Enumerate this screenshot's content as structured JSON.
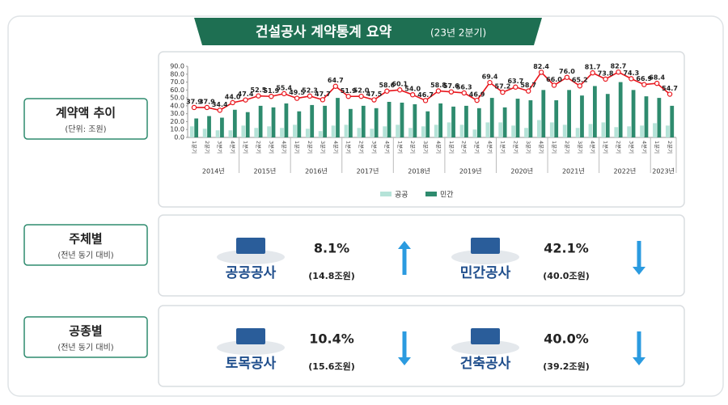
{
  "header": {
    "title": "건설공사 계약통계 요약",
    "subtitle": "(23년 2분기)"
  },
  "sections": [
    {
      "label": "계약액 추이",
      "sublabel": "(단위: 조원)"
    },
    {
      "label": "주체별",
      "sublabel": "(전년 동기 대비)",
      "items": [
        {
          "name": "공공공사",
          "rate": "8.1%",
          "amount": "(14.8조원)",
          "direction": "up"
        },
        {
          "name": "민간공사",
          "rate": "42.1%",
          "amount": "(40.0조원)",
          "direction": "down"
        }
      ]
    },
    {
      "label": "공종별",
      "sublabel": "(전년 동기 대비)",
      "items": [
        {
          "name": "토목공사",
          "rate": "10.4%",
          "amount": "(15.6조원)",
          "direction": "down"
        },
        {
          "name": "건축공사",
          "rate": "40.0%",
          "amount": "(39.2조원)",
          "direction": "down"
        }
      ]
    }
  ],
  "chart_data": {
    "type": "bar-line",
    "categories": [
      "1분기",
      "2분기",
      "3분기",
      "4분기",
      "1분기",
      "2분기",
      "3분기",
      "4분기",
      "1분기",
      "2분기",
      "3분기",
      "4분기",
      "1분기",
      "2분기",
      "3분기",
      "4분기",
      "1분기",
      "2분기",
      "3분기",
      "4분기",
      "1분기",
      "2분기",
      "3분기",
      "4분기",
      "1분기",
      "2분기",
      "3분기",
      "4분기",
      "1분기",
      "2분기",
      "3분기",
      "4분기",
      "1분기",
      "2분기",
      "3분기",
      "4분기",
      "1분기",
      "2분기"
    ],
    "year_labels": [
      "2014년",
      "2015년",
      "2016년",
      "2017년",
      "2018년",
      "2019년",
      "2020년",
      "2021년",
      "2022년",
      "2023년"
    ],
    "series": [
      {
        "name": "공공",
        "color": "#b5e3d8",
        "values": [
          14,
          11,
          9,
          9,
          15,
          12,
          14,
          12,
          16,
          11,
          8,
          15,
          16,
          12,
          11,
          14,
          16,
          12,
          14,
          16,
          19,
          16,
          10,
          19,
          19,
          15,
          12,
          22,
          19,
          16,
          12,
          17,
          19,
          13,
          14,
          15,
          18,
          15
        ]
      },
      {
        "name": "민간",
        "color": "#2e8b6e",
        "values": [
          24,
          27,
          25,
          35,
          32,
          40,
          38,
          43,
          33,
          41,
          40,
          50,
          36,
          40,
          37,
          45,
          44,
          42,
          33,
          43,
          39,
          40,
          37,
          50,
          38,
          49,
          47,
          60,
          47,
          60,
          53,
          65,
          55,
          70,
          60,
          52,
          50,
          40
        ]
      }
    ],
    "line": {
      "color": "#e8141b",
      "values": [
        37.9,
        37.9,
        34.4,
        44.0,
        47.4,
        52.5,
        51.9,
        55.4,
        49.5,
        52.3,
        47.7,
        64.7,
        51.9,
        52.0,
        47.5,
        58.6,
        60.1,
        54.0,
        46.7,
        58.8,
        57.6,
        56.3,
        46.9,
        69.4,
        57.2,
        63.7,
        58.7,
        82.4,
        66.0,
        76.0,
        65.2,
        81.7,
        73.8,
        82.7,
        74.3,
        66.9,
        68.4,
        54.7
      ],
      "value_labels": [
        "37.9",
        "37.9",
        "34.4",
        "44.0",
        "47.4",
        "52.5",
        "51.9",
        "55.4",
        "49.5",
        "52.3",
        "47.7",
        "64.7",
        "51.9",
        "52.0",
        "47.5",
        "58.6",
        "60.1",
        "54.0",
        "46.7",
        "58.8",
        "57.6",
        "56.3",
        "46.9",
        "69.4",
        "57.2",
        "63.7",
        "58.7",
        "82.4",
        "66.0",
        "76.0",
        "65.2",
        "81.7",
        "73.8",
        "82.7",
        "74.3",
        "66.9",
        "68.4",
        "54.7"
      ]
    },
    "ylim": [
      0,
      90
    ],
    "yticks": [
      {
        "value": 0,
        "label": "0.0"
      },
      {
        "value": 10,
        "label": "10.0"
      },
      {
        "value": 20,
        "label": "20.0"
      },
      {
        "value": 30,
        "label": "30.0"
      },
      {
        "value": 40,
        "label": "40.0"
      },
      {
        "value": 50,
        "label": "50.0"
      },
      {
        "value": 60,
        "label": "60.0"
      },
      {
        "value": 70,
        "label": "70.0"
      },
      {
        "value": 80,
        "label": "80.0"
      },
      {
        "value": 90,
        "label": "90.0"
      }
    ],
    "grid": false
  }
}
